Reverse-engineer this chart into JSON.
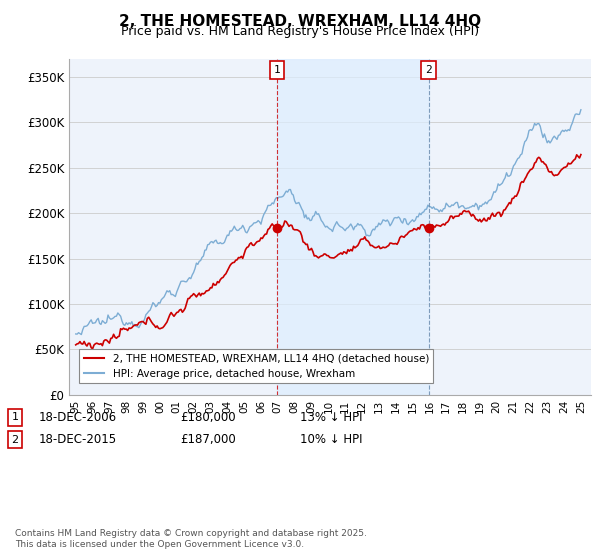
{
  "title": "2, THE HOMESTEAD, WREXHAM, LL14 4HQ",
  "subtitle": "Price paid vs. HM Land Registry's House Price Index (HPI)",
  "ylabel_ticks": [
    "£0",
    "£50K",
    "£100K",
    "£150K",
    "£200K",
    "£250K",
    "£300K",
    "£350K"
  ],
  "ytick_values": [
    0,
    50000,
    100000,
    150000,
    200000,
    250000,
    300000,
    350000
  ],
  "ylim": [
    0,
    370000
  ],
  "hpi_color": "#7dadd4",
  "price_color": "#cc0000",
  "marker1_x": 2006.96,
  "marker2_x": 2015.96,
  "shade_color": "#ddeeff",
  "legend_price": "2, THE HOMESTEAD, WREXHAM, LL14 4HQ (detached house)",
  "legend_hpi": "HPI: Average price, detached house, Wrexham",
  "footer": "Contains HM Land Registry data © Crown copyright and database right 2025.\nThis data is licensed under the Open Government Licence v3.0.",
  "background_color": "#ffffff",
  "plot_bg_color": "#eef3fb",
  "grid_color": "#cccccc",
  "marker1_date": "18-DEC-2006",
  "marker1_price": "£180,000",
  "marker1_hpi": "13% ↓ HPI",
  "marker2_date": "18-DEC-2015",
  "marker2_price": "£187,000",
  "marker2_hpi": "10% ↓ HPI"
}
